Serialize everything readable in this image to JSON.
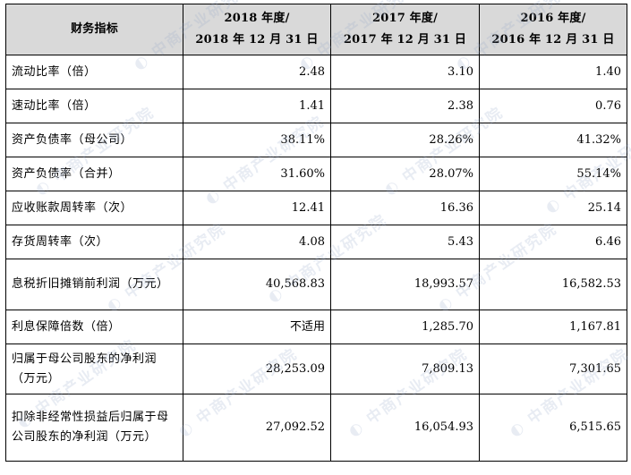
{
  "table": {
    "headers": [
      {
        "lines": [
          "财务指标"
        ]
      },
      {
        "lines": [
          "2018 年度/",
          "2018 年 12 月 31 日"
        ]
      },
      {
        "lines": [
          "2017 年度/",
          "2017 年 12 月 31 日"
        ]
      },
      {
        "lines": [
          "2016 年度/",
          "2016 年 12 月 31 日"
        ]
      }
    ],
    "rows": [
      {
        "label": "流动比率（倍）",
        "values": [
          "2.48",
          "3.10",
          "1.40"
        ]
      },
      {
        "label": "速动比率（倍）",
        "values": [
          "1.41",
          "2.38",
          "0.76"
        ]
      },
      {
        "label": "资产负债率（母公司）",
        "values": [
          "38.11%",
          "28.26%",
          "41.32%"
        ]
      },
      {
        "label": "资产负债率（合并）",
        "values": [
          "31.60%",
          "28.07%",
          "55.14%"
        ]
      },
      {
        "label": "应收账款周转率（次）",
        "values": [
          "12.41",
          "16.36",
          "25.14"
        ]
      },
      {
        "label": "存货周转率（次）",
        "values": [
          "4.08",
          "5.43",
          "6.46"
        ]
      },
      {
        "label": "息税折旧摊销前利润（万元）",
        "values": [
          "40,568.83",
          "18,993.57",
          "16,582.53"
        ]
      },
      {
        "label": "利息保障倍数（倍）",
        "values": [
          "不适用",
          "1,285.70",
          "1,167.81"
        ]
      },
      {
        "label": "归属于母公司股东的净利润（万元）",
        "values": [
          "28,253.09",
          "7,809.13",
          "7,301.65"
        ]
      },
      {
        "label": "扣除非经常性损益后归属于母公司股东的净利润（万元）",
        "values": [
          "27,092.52",
          "16,054.93",
          "6,515.65"
        ]
      }
    ]
  },
  "watermark": {
    "text": "中商产业研究院"
  },
  "colors": {
    "header_bg": "#d9d9d9",
    "border": "#000000",
    "watermark": "#96aac8"
  }
}
